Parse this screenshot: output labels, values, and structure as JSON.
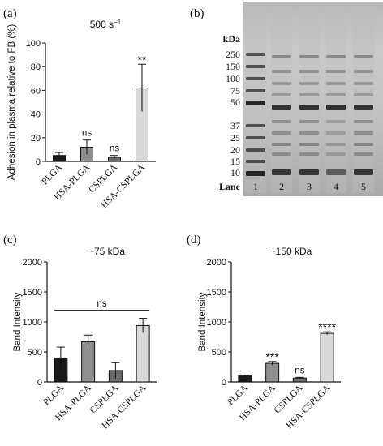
{
  "panels": {
    "a": {
      "tag": "(a)"
    },
    "b": {
      "tag": "(b)"
    },
    "c": {
      "tag": "(c)"
    },
    "d": {
      "tag": "(d)"
    }
  },
  "chart_data": [
    {
      "id": "a",
      "type": "bar",
      "title": "500 s",
      "title_sup": "−1",
      "ylabel": "Adhesion in plasma relative to FB (%)",
      "xlabel": "",
      "ylim": [
        0,
        100
      ],
      "yticks": [
        0,
        20,
        40,
        60,
        80,
        100
      ],
      "categories": [
        "PLGA",
        "HSA-PLGA",
        "CSPLGA",
        "HSA-CSPLGA"
      ],
      "values": [
        5,
        12,
        3.5,
        62
      ],
      "errors": [
        2.5,
        6,
        1.5,
        20
      ],
      "annotations": [
        "",
        "ns",
        "ns",
        "**"
      ],
      "bar_colors": [
        "#1a1a1a",
        "#8f8f8f",
        "#6a6a6a",
        "#d9d9d9"
      ],
      "grid": false
    },
    {
      "id": "b",
      "type": "gel",
      "ylabel": "kDa",
      "markers": [
        "250",
        "150",
        "100",
        "75",
        "50",
        "37",
        "25",
        "20",
        "15",
        "10"
      ],
      "lane_label": "Lane",
      "lanes": [
        "1",
        "2",
        "3",
        "4",
        "5"
      ]
    },
    {
      "id": "c",
      "type": "bar",
      "title": "~75 kDa",
      "ylabel": "Band Intensity",
      "xlabel": "",
      "ylim": [
        0,
        2000
      ],
      "yticks": [
        0,
        500,
        1000,
        1500,
        2000
      ],
      "categories": [
        "PLGA",
        "HSA-PLGA",
        "CSPLGA",
        "HSA-CSPLGA"
      ],
      "values": [
        400,
        670,
        190,
        940
      ],
      "errors": [
        180,
        110,
        130,
        120
      ],
      "bracket_label": "ns",
      "bar_colors": [
        "#1a1a1a",
        "#8f8f8f",
        "#6a6a6a",
        "#d9d9d9"
      ],
      "grid": false
    },
    {
      "id": "d",
      "type": "bar",
      "title": "~150 kDa",
      "ylabel": "Band Intensity",
      "xlabel": "",
      "ylim": [
        0,
        2000
      ],
      "yticks": [
        0,
        500,
        1000,
        1500,
        2000
      ],
      "categories": [
        "PLGA",
        "HSA-PLGA",
        "CSPLGA",
        "HSA-CSPLGA"
      ],
      "values": [
        100,
        310,
        65,
        810
      ],
      "errors": [
        15,
        30,
        12,
        25
      ],
      "annotations": [
        "",
        "***",
        "ns",
        "****"
      ],
      "bar_colors": [
        "#1a1a1a",
        "#8f8f8f",
        "#6a6a6a",
        "#d9d9d9"
      ],
      "grid": false
    }
  ]
}
